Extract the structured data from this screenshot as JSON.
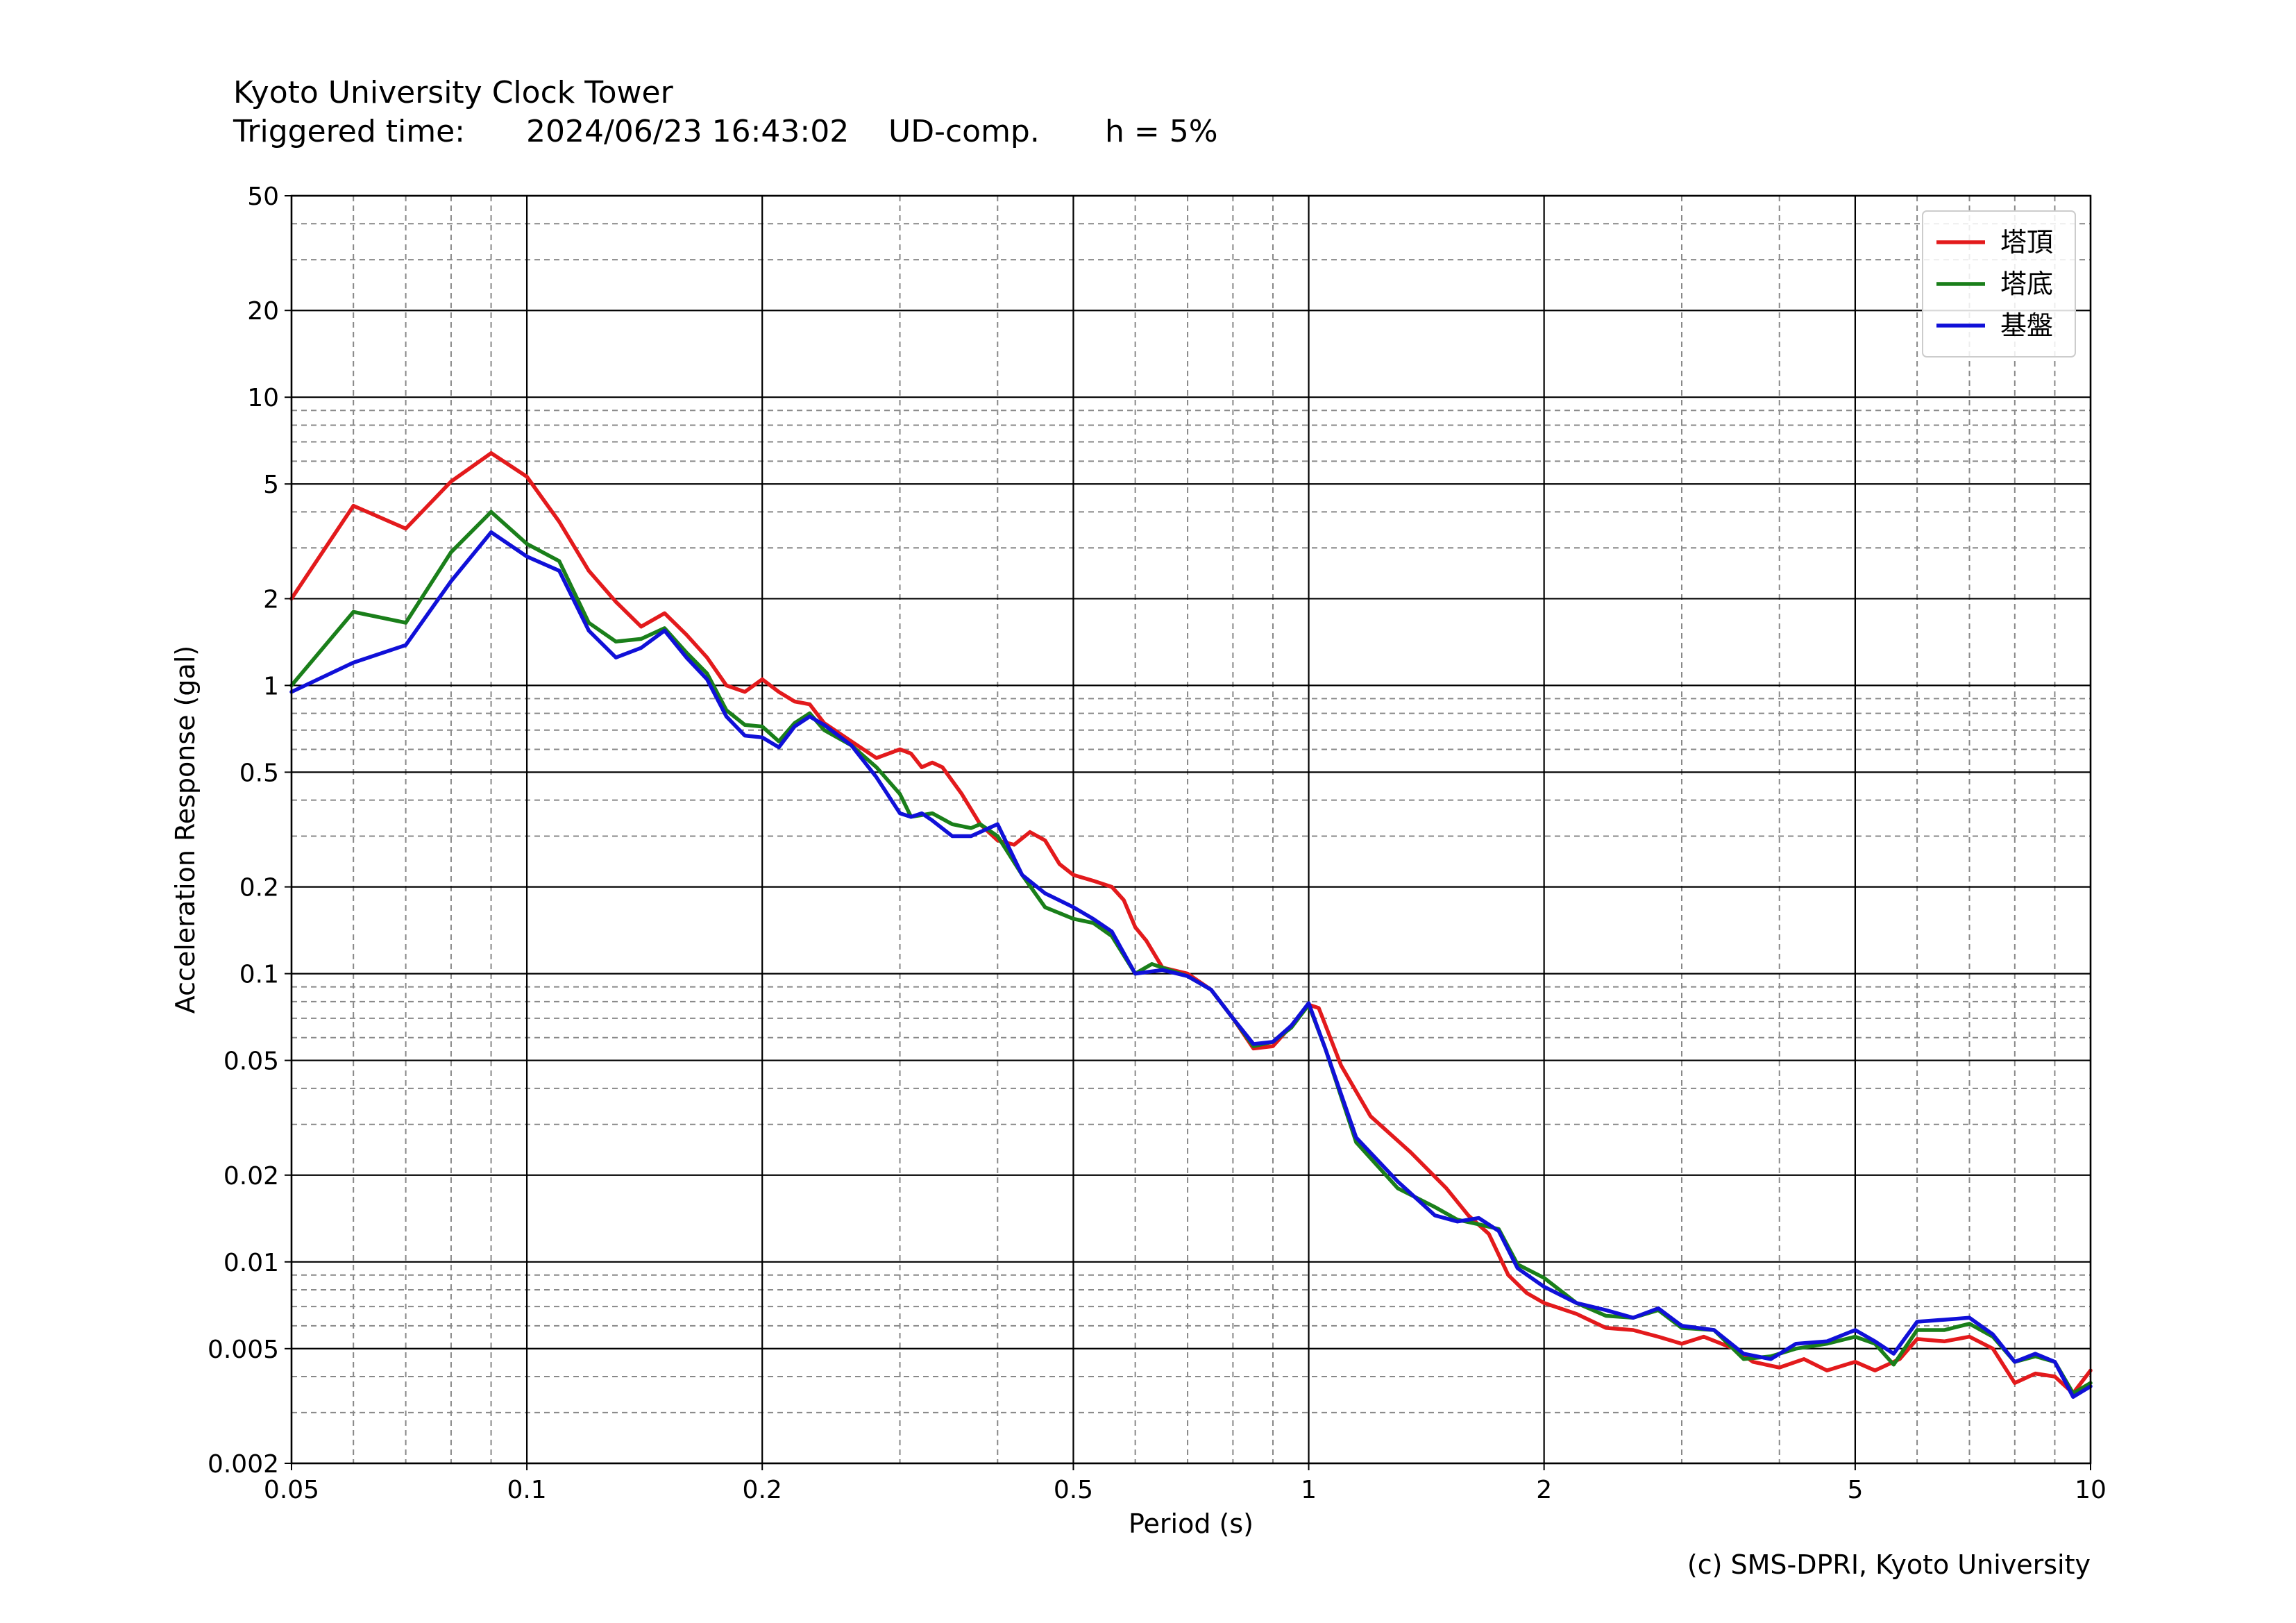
{
  "header": {
    "title": "Kyoto University Clock Tower",
    "triggered_label": "Triggered time:",
    "triggered_value": "2024/06/23 16:43:02",
    "component": "UD-comp.",
    "damping": "h = 5%"
  },
  "credit": "(c) SMS-DPRI, Kyoto University",
  "colors": {
    "tower_top": "#e31a1c",
    "tower_base": "#1a7f1a",
    "ground": "#1010d8",
    "grid_major": "#000000",
    "grid_minor": "#888888"
  },
  "chart_data": {
    "type": "line",
    "xscale": "log",
    "yscale": "log",
    "xlabel": "Period (s)",
    "ylabel": "Acceleration Response (gal)",
    "xlim": [
      0.05,
      10
    ],
    "ylim": [
      0.002,
      50
    ],
    "xticks": [
      0.05,
      0.1,
      0.2,
      0.5,
      1,
      2,
      5,
      10
    ],
    "xtick_labels": [
      "0.05",
      "0.1",
      "0.2",
      "0.5",
      "1",
      "2",
      "5",
      "10"
    ],
    "yticks": [
      0.002,
      0.005,
      0.01,
      0.02,
      0.05,
      0.1,
      0.2,
      0.5,
      1,
      2,
      5,
      10,
      20,
      50
    ],
    "ytick_labels": [
      "0.002",
      "0.005",
      "0.01",
      "0.02",
      "0.05",
      "0.1",
      "0.2",
      "0.5",
      "1",
      "2",
      "5",
      "10",
      "20",
      "50"
    ],
    "grid": true,
    "legend_position": "top-right",
    "series": [
      {
        "name": "塔頂",
        "color": "#e31a1c",
        "points": [
          [
            0.05,
            2.0
          ],
          [
            0.06,
            4.2
          ],
          [
            0.07,
            3.5
          ],
          [
            0.08,
            5.1
          ],
          [
            0.09,
            6.4
          ],
          [
            0.1,
            5.3
          ],
          [
            0.11,
            3.7
          ],
          [
            0.12,
            2.5
          ],
          [
            0.13,
            1.95
          ],
          [
            0.14,
            1.6
          ],
          [
            0.15,
            1.78
          ],
          [
            0.16,
            1.5
          ],
          [
            0.17,
            1.25
          ],
          [
            0.18,
            1.0
          ],
          [
            0.19,
            0.95
          ],
          [
            0.2,
            1.05
          ],
          [
            0.21,
            0.95
          ],
          [
            0.22,
            0.88
          ],
          [
            0.23,
            0.86
          ],
          [
            0.24,
            0.74
          ],
          [
            0.26,
            0.64
          ],
          [
            0.28,
            0.56
          ],
          [
            0.3,
            0.6
          ],
          [
            0.31,
            0.58
          ],
          [
            0.32,
            0.52
          ],
          [
            0.33,
            0.54
          ],
          [
            0.34,
            0.52
          ],
          [
            0.36,
            0.42
          ],
          [
            0.38,
            0.33
          ],
          [
            0.4,
            0.29
          ],
          [
            0.42,
            0.28
          ],
          [
            0.44,
            0.31
          ],
          [
            0.46,
            0.29
          ],
          [
            0.48,
            0.24
          ],
          [
            0.5,
            0.22
          ],
          [
            0.53,
            0.21
          ],
          [
            0.56,
            0.2
          ],
          [
            0.58,
            0.18
          ],
          [
            0.6,
            0.145
          ],
          [
            0.62,
            0.13
          ],
          [
            0.65,
            0.105
          ],
          [
            0.7,
            0.1
          ],
          [
            0.75,
            0.088
          ],
          [
            0.8,
            0.07
          ],
          [
            0.85,
            0.055
          ],
          [
            0.9,
            0.056
          ],
          [
            0.95,
            0.066
          ],
          [
            1.0,
            0.078
          ],
          [
            1.03,
            0.076
          ],
          [
            1.1,
            0.048
          ],
          [
            1.2,
            0.032
          ],
          [
            1.35,
            0.024
          ],
          [
            1.5,
            0.018
          ],
          [
            1.6,
            0.0145
          ],
          [
            1.7,
            0.0125
          ],
          [
            1.8,
            0.009
          ],
          [
            1.9,
            0.0078
          ],
          [
            2.0,
            0.0072
          ],
          [
            2.2,
            0.0066
          ],
          [
            2.4,
            0.0059
          ],
          [
            2.6,
            0.0058
          ],
          [
            2.8,
            0.0055
          ],
          [
            3.0,
            0.0052
          ],
          [
            3.2,
            0.0055
          ],
          [
            3.5,
            0.005
          ],
          [
            3.7,
            0.0045
          ],
          [
            4.0,
            0.0043
          ],
          [
            4.3,
            0.0046
          ],
          [
            4.6,
            0.0042
          ],
          [
            5.0,
            0.0045
          ],
          [
            5.3,
            0.0042
          ],
          [
            5.7,
            0.0046
          ],
          [
            6.0,
            0.0054
          ],
          [
            6.5,
            0.0053
          ],
          [
            7.0,
            0.0055
          ],
          [
            7.5,
            0.005
          ],
          [
            8.0,
            0.0038
          ],
          [
            8.5,
            0.0041
          ],
          [
            9.0,
            0.004
          ],
          [
            9.5,
            0.0035
          ],
          [
            10.0,
            0.0042
          ]
        ]
      },
      {
        "name": "塔底",
        "color": "#1a7f1a",
        "points": [
          [
            0.05,
            1.0
          ],
          [
            0.06,
            1.8
          ],
          [
            0.07,
            1.65
          ],
          [
            0.08,
            2.9
          ],
          [
            0.09,
            4.0
          ],
          [
            0.1,
            3.1
          ],
          [
            0.11,
            2.7
          ],
          [
            0.12,
            1.65
          ],
          [
            0.13,
            1.42
          ],
          [
            0.14,
            1.45
          ],
          [
            0.15,
            1.58
          ],
          [
            0.16,
            1.3
          ],
          [
            0.17,
            1.1
          ],
          [
            0.18,
            0.82
          ],
          [
            0.19,
            0.73
          ],
          [
            0.2,
            0.72
          ],
          [
            0.21,
            0.64
          ],
          [
            0.22,
            0.74
          ],
          [
            0.23,
            0.8
          ],
          [
            0.24,
            0.7
          ],
          [
            0.26,
            0.62
          ],
          [
            0.28,
            0.52
          ],
          [
            0.3,
            0.42
          ],
          [
            0.31,
            0.35
          ],
          [
            0.33,
            0.36
          ],
          [
            0.35,
            0.33
          ],
          [
            0.37,
            0.32
          ],
          [
            0.38,
            0.33
          ],
          [
            0.4,
            0.3
          ],
          [
            0.43,
            0.22
          ],
          [
            0.46,
            0.17
          ],
          [
            0.5,
            0.155
          ],
          [
            0.53,
            0.15
          ],
          [
            0.56,
            0.135
          ],
          [
            0.6,
            0.1
          ],
          [
            0.63,
            0.108
          ],
          [
            0.7,
            0.098
          ],
          [
            0.75,
            0.088
          ],
          [
            0.8,
            0.07
          ],
          [
            0.85,
            0.056
          ],
          [
            0.9,
            0.058
          ],
          [
            0.95,
            0.065
          ],
          [
            1.0,
            0.078
          ],
          [
            1.05,
            0.055
          ],
          [
            1.15,
            0.026
          ],
          [
            1.3,
            0.018
          ],
          [
            1.45,
            0.0155
          ],
          [
            1.55,
            0.014
          ],
          [
            1.65,
            0.0135
          ],
          [
            1.75,
            0.013
          ],
          [
            1.85,
            0.0098
          ],
          [
            2.0,
            0.0088
          ],
          [
            2.2,
            0.0072
          ],
          [
            2.4,
            0.0065
          ],
          [
            2.6,
            0.0064
          ],
          [
            2.8,
            0.0068
          ],
          [
            3.0,
            0.0059
          ],
          [
            3.3,
            0.0058
          ],
          [
            3.6,
            0.0046
          ],
          [
            3.9,
            0.0047
          ],
          [
            4.2,
            0.005
          ],
          [
            4.6,
            0.0052
          ],
          [
            5.0,
            0.0055
          ],
          [
            5.3,
            0.0052
          ],
          [
            5.6,
            0.0044
          ],
          [
            6.0,
            0.0058
          ],
          [
            6.5,
            0.0058
          ],
          [
            7.0,
            0.0061
          ],
          [
            7.5,
            0.0055
          ],
          [
            8.0,
            0.0045
          ],
          [
            8.5,
            0.0047
          ],
          [
            9.0,
            0.0045
          ],
          [
            9.5,
            0.0035
          ],
          [
            10.0,
            0.0038
          ]
        ]
      },
      {
        "name": "基盤",
        "color": "#1010d8",
        "points": [
          [
            0.05,
            0.95
          ],
          [
            0.06,
            1.2
          ],
          [
            0.07,
            1.38
          ],
          [
            0.08,
            2.3
          ],
          [
            0.09,
            3.4
          ],
          [
            0.1,
            2.8
          ],
          [
            0.11,
            2.5
          ],
          [
            0.12,
            1.55
          ],
          [
            0.13,
            1.25
          ],
          [
            0.14,
            1.35
          ],
          [
            0.15,
            1.55
          ],
          [
            0.16,
            1.25
          ],
          [
            0.17,
            1.05
          ],
          [
            0.18,
            0.78
          ],
          [
            0.19,
            0.67
          ],
          [
            0.2,
            0.66
          ],
          [
            0.21,
            0.61
          ],
          [
            0.22,
            0.72
          ],
          [
            0.23,
            0.78
          ],
          [
            0.24,
            0.73
          ],
          [
            0.26,
            0.62
          ],
          [
            0.28,
            0.48
          ],
          [
            0.3,
            0.36
          ],
          [
            0.31,
            0.35
          ],
          [
            0.32,
            0.36
          ],
          [
            0.33,
            0.34
          ],
          [
            0.35,
            0.3
          ],
          [
            0.37,
            0.3
          ],
          [
            0.4,
            0.33
          ],
          [
            0.43,
            0.22
          ],
          [
            0.46,
            0.19
          ],
          [
            0.5,
            0.17
          ],
          [
            0.53,
            0.155
          ],
          [
            0.56,
            0.14
          ],
          [
            0.6,
            0.1
          ],
          [
            0.65,
            0.103
          ],
          [
            0.7,
            0.098
          ],
          [
            0.75,
            0.088
          ],
          [
            0.8,
            0.07
          ],
          [
            0.85,
            0.057
          ],
          [
            0.9,
            0.058
          ],
          [
            0.95,
            0.066
          ],
          [
            1.0,
            0.079
          ],
          [
            1.05,
            0.055
          ],
          [
            1.15,
            0.027
          ],
          [
            1.3,
            0.019
          ],
          [
            1.45,
            0.0145
          ],
          [
            1.55,
            0.0138
          ],
          [
            1.65,
            0.0142
          ],
          [
            1.75,
            0.0128
          ],
          [
            1.85,
            0.0095
          ],
          [
            2.0,
            0.0082
          ],
          [
            2.2,
            0.0072
          ],
          [
            2.4,
            0.0068
          ],
          [
            2.6,
            0.0064
          ],
          [
            2.8,
            0.0069
          ],
          [
            3.0,
            0.006
          ],
          [
            3.3,
            0.0058
          ],
          [
            3.6,
            0.0048
          ],
          [
            3.9,
            0.0046
          ],
          [
            4.2,
            0.0052
          ],
          [
            4.6,
            0.0053
          ],
          [
            5.0,
            0.0058
          ],
          [
            5.3,
            0.0053
          ],
          [
            5.6,
            0.0048
          ],
          [
            6.0,
            0.0062
          ],
          [
            6.5,
            0.0063
          ],
          [
            7.0,
            0.0064
          ],
          [
            7.5,
            0.0056
          ],
          [
            8.0,
            0.0045
          ],
          [
            8.5,
            0.0048
          ],
          [
            9.0,
            0.0045
          ],
          [
            9.5,
            0.0034
          ],
          [
            10.0,
            0.0037
          ]
        ]
      }
    ]
  }
}
